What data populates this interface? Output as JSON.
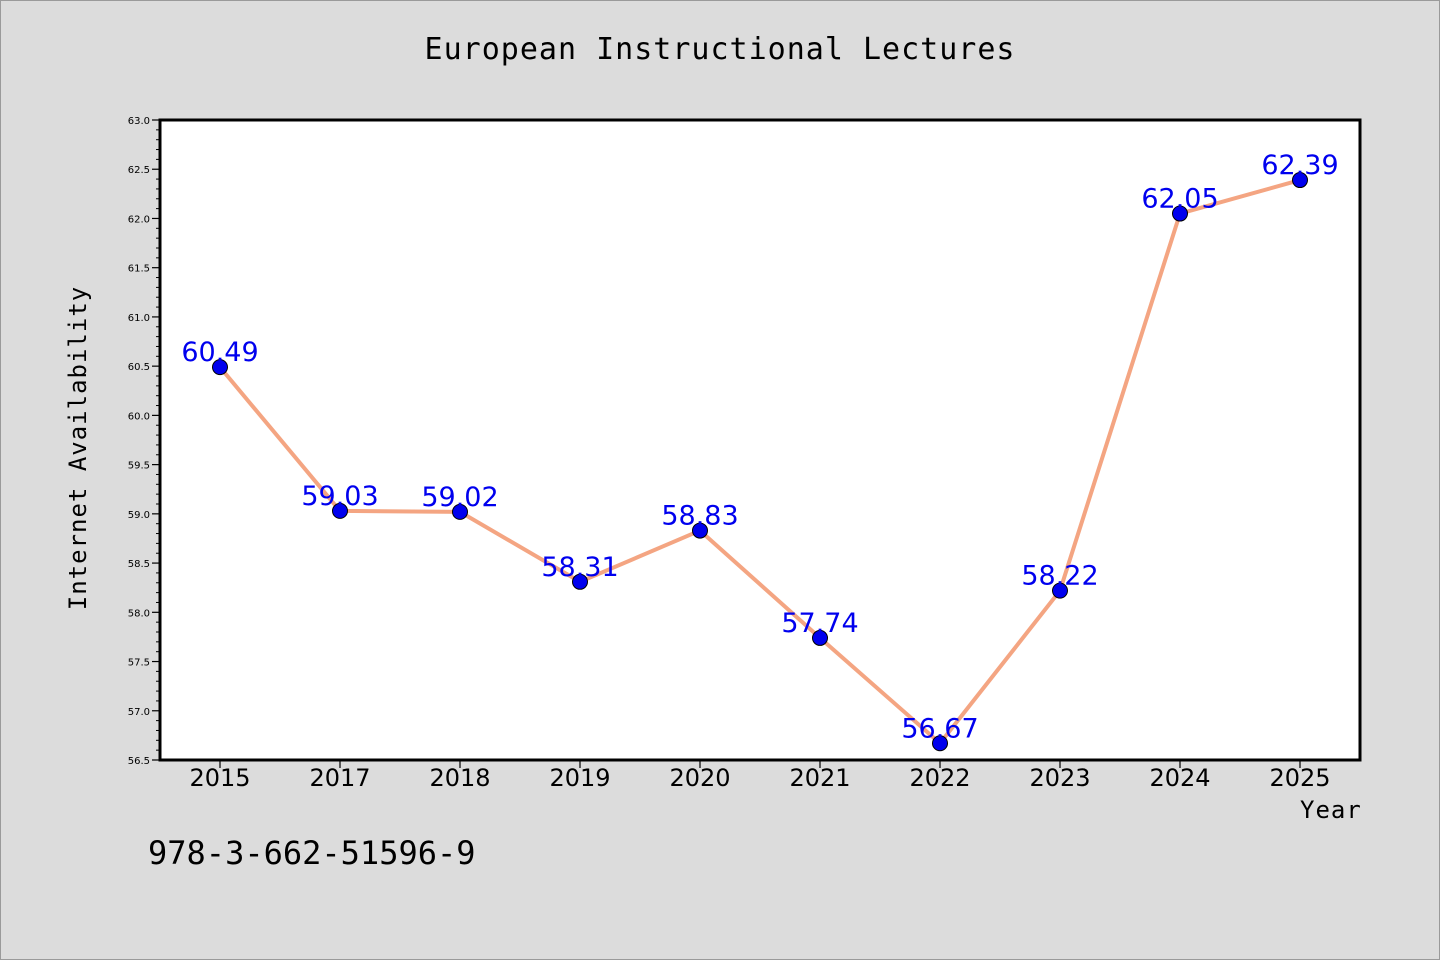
{
  "chart_data": {
    "type": "line",
    "title": "European Instructional Lectures",
    "xlabel": "Year",
    "ylabel": "Internet Availability",
    "categories": [
      "2015",
      "2017",
      "2018",
      "2019",
      "2020",
      "2021",
      "2022",
      "2023",
      "2024",
      "2025"
    ],
    "series": [
      {
        "values": [
          60.49,
          59.03,
          59.02,
          58.31,
          58.83,
          57.74,
          56.67,
          58.22,
          62.05,
          62.39
        ],
        "labels": [
          "60.49",
          "59.03",
          "59.02",
          "58.31",
          "58.83",
          "57.74",
          "56.67",
          "58.22",
          "62.05",
          "62.39"
        ],
        "line_color": "#f4a582",
        "marker_color": "#0000ee",
        "label_color": "#0000ee"
      }
    ],
    "ylim": [
      56.5,
      63.0
    ],
    "yticks": [
      "56.5",
      "57.0",
      "57.5",
      "58.0",
      "58.5",
      "59.0",
      "59.5",
      "60.0",
      "60.5",
      "61.0",
      "61.5",
      "62.0",
      "62.5",
      "63.0"
    ],
    "grid": false,
    "legend": "none"
  },
  "annotation": "978-3-662-51596-9",
  "colors": {
    "background": "#dcdcdc",
    "plot_background": "#ffffff",
    "axis": "#000000"
  }
}
